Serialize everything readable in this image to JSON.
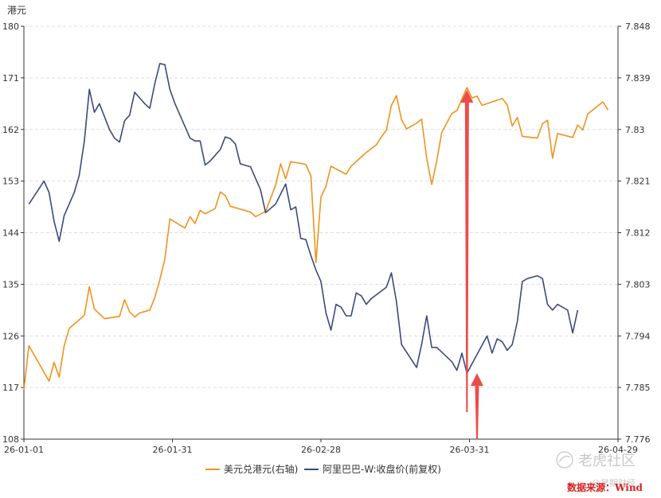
{
  "chart_data": {
    "type": "line",
    "ylabel_left": "港元",
    "x_ticks": [
      "26-01-01",
      "26-01-31",
      "26-02-28",
      "26-03-31",
      "26-04-29"
    ],
    "y_left_ticks": [
      "108",
      "117",
      "126",
      "135",
      "144",
      "153",
      "162",
      "171",
      "180"
    ],
    "y_right_ticks": [
      "7.776",
      "7.785",
      "7.794",
      "7.803",
      "7.812",
      "7.821",
      "7.83",
      "7.839",
      "7.848"
    ],
    "ylim_left": [
      108,
      180
    ],
    "ylim_right": [
      7.776,
      7.848
    ],
    "xlim_days": [
      0,
      118
    ],
    "grid": true,
    "legend_position": "bottom",
    "series": [
      {
        "name": "美元兑港元(右轴)",
        "axis": "right",
        "color": "#f0931e",
        "points": [
          [
            0,
            7.7846
          ],
          [
            1,
            7.7923
          ],
          [
            5,
            7.7861
          ],
          [
            6,
            7.7894
          ],
          [
            7,
            7.7868
          ],
          [
            8,
            7.7923
          ],
          [
            9,
            7.7953
          ],
          [
            12,
            7.7976
          ],
          [
            13,
            7.8026
          ],
          [
            14,
            7.7987
          ],
          [
            16,
            7.797
          ],
          [
            19,
            7.7974
          ],
          [
            20,
            7.8003
          ],
          [
            21,
            7.7982
          ],
          [
            22,
            7.7973
          ],
          [
            23,
            7.798
          ],
          [
            25,
            7.7985
          ],
          [
            26,
            7.8007
          ],
          [
            27,
            7.8038
          ],
          [
            28,
            7.8074
          ],
          [
            29,
            7.8144
          ],
          [
            32,
            7.8128
          ],
          [
            33,
            7.8148
          ],
          [
            34,
            7.8136
          ],
          [
            35,
            7.8159
          ],
          [
            36,
            7.8153
          ],
          [
            38,
            7.8162
          ],
          [
            39,
            7.8191
          ],
          [
            40,
            7.8185
          ],
          [
            41,
            7.8166
          ],
          [
            45,
            7.8156
          ],
          [
            46,
            7.8148
          ],
          [
            48,
            7.8157
          ],
          [
            50,
            7.8203
          ],
          [
            51,
            7.824
          ],
          [
            52,
            7.8214
          ],
          [
            53,
            7.8244
          ],
          [
            56,
            7.8239
          ],
          [
            57,
            7.8219
          ],
          [
            58,
            7.8068
          ],
          [
            59,
            7.8182
          ],
          [
            60,
            7.8201
          ],
          [
            61,
            7.8236
          ],
          [
            64,
            7.8222
          ],
          [
            65,
            7.8236
          ],
          [
            67,
            7.8252
          ],
          [
            68,
            7.826
          ],
          [
            70,
            7.8273
          ],
          [
            71,
            7.8287
          ],
          [
            72,
            7.8299
          ],
          [
            73,
            7.8342
          ],
          [
            74,
            7.8359
          ],
          [
            75,
            7.8317
          ],
          [
            76,
            7.8301
          ],
          [
            78,
            7.8311
          ],
          [
            79,
            7.8318
          ],
          [
            80,
            7.825
          ],
          [
            81,
            7.8204
          ],
          [
            82,
            7.8245
          ],
          [
            83,
            7.8295
          ],
          [
            85,
            7.8328
          ],
          [
            86,
            7.8333
          ],
          [
            88,
            7.8373
          ],
          [
            89,
            7.8355
          ],
          [
            90,
            7.8358
          ],
          [
            91,
            7.8342
          ],
          [
            95,
            7.8354
          ],
          [
            96,
            7.8343
          ],
          [
            97,
            7.8306
          ],
          [
            98,
            7.8321
          ],
          [
            99,
            7.8288
          ],
          [
            102,
            7.8285
          ],
          [
            103,
            7.831
          ],
          [
            104,
            7.8316
          ],
          [
            105,
            7.825
          ],
          [
            106,
            7.8293
          ],
          [
            109,
            7.8286
          ],
          [
            110,
            7.8308
          ],
          [
            111,
            7.8299
          ],
          [
            112,
            7.8327
          ],
          [
            115,
            7.8348
          ],
          [
            116,
            7.8334
          ]
        ]
      },
      {
        "name": "阿里巴巴-W:收盘价(前复权)",
        "axis": "left",
        "color": "#3c4a7d",
        "points": [
          [
            1,
            149.0
          ],
          [
            4,
            153.0
          ],
          [
            5,
            151.0
          ],
          [
            6,
            146.0
          ],
          [
            7,
            142.5
          ],
          [
            8,
            147.0
          ],
          [
            10,
            151.0
          ],
          [
            11,
            154.0
          ],
          [
            12,
            160.0
          ],
          [
            13,
            169.0
          ],
          [
            14,
            165.0
          ],
          [
            15,
            166.5
          ],
          [
            17,
            162.0
          ],
          [
            18,
            160.5
          ],
          [
            19,
            159.8
          ],
          [
            20,
            163.5
          ],
          [
            21,
            164.5
          ],
          [
            22,
            168.5
          ],
          [
            24,
            166.5
          ],
          [
            25,
            165.7
          ],
          [
            26,
            170.0
          ],
          [
            27,
            173.5
          ],
          [
            28,
            173.3
          ],
          [
            29,
            169.0
          ],
          [
            30,
            166.5
          ],
          [
            32,
            162.5
          ],
          [
            33,
            160.5
          ],
          [
            34,
            160.0
          ],
          [
            35,
            160.0
          ],
          [
            36,
            155.8
          ],
          [
            37,
            156.5
          ],
          [
            38,
            157.5
          ],
          [
            39,
            158.5
          ],
          [
            40,
            160.7
          ],
          [
            41,
            160.4
          ],
          [
            42,
            159.5
          ],
          [
            43,
            156.0
          ],
          [
            45,
            155.5
          ],
          [
            47,
            151.5
          ],
          [
            48,
            147.5
          ],
          [
            50,
            149.0
          ],
          [
            52,
            152.5
          ],
          [
            53,
            148.0
          ],
          [
            54,
            148.5
          ],
          [
            55,
            143.0
          ],
          [
            56,
            142.8
          ],
          [
            57,
            140.0
          ],
          [
            58,
            137.5
          ],
          [
            59,
            135.5
          ],
          [
            60,
            130.0
          ],
          [
            61,
            127.0
          ],
          [
            62,
            131.5
          ],
          [
            63,
            131.0
          ],
          [
            64,
            129.5
          ],
          [
            65,
            129.5
          ],
          [
            66,
            133.5
          ],
          [
            67,
            133.0
          ],
          [
            68,
            131.5
          ],
          [
            69,
            132.5
          ],
          [
            72,
            134.5
          ],
          [
            73,
            137.0
          ],
          [
            74,
            132.0
          ],
          [
            75,
            124.5
          ],
          [
            78,
            120.5
          ],
          [
            79,
            124.5
          ],
          [
            80,
            129.5
          ],
          [
            81,
            124.0
          ],
          [
            82,
            124.0
          ],
          [
            85,
            121.5
          ],
          [
            86,
            120.0
          ],
          [
            87,
            123.0
          ],
          [
            88,
            119.5
          ],
          [
            92,
            126.0
          ],
          [
            93,
            123.0
          ],
          [
            94,
            125.5
          ],
          [
            95,
            125.0
          ],
          [
            96,
            123.5
          ],
          [
            97,
            124.5
          ],
          [
            98,
            128.5
          ],
          [
            99,
            135.5
          ],
          [
            100,
            136.0
          ],
          [
            102,
            136.5
          ],
          [
            103,
            136.0
          ],
          [
            104,
            131.5
          ],
          [
            105,
            130.5
          ],
          [
            106,
            131.5
          ],
          [
            108,
            130.5
          ],
          [
            109,
            126.5
          ],
          [
            110,
            130.5
          ]
        ]
      }
    ],
    "annotations": [
      {
        "type": "arrow",
        "color": "#ee4b4b",
        "from_day": 88,
        "from_value_right": 7.7807,
        "to_day": 88,
        "to_value_right": 7.8369
      },
      {
        "type": "arrow",
        "color": "#ee4b4b",
        "from_day": 90,
        "from_value_left": 108.0,
        "to_day": 90,
        "to_value_left": 119.5
      }
    ]
  },
  "source_label": "数据来源：Wind",
  "watermark": {
    "main": "老虎社区",
    "sub": "@是期财经",
    "icon": "tiger-logo-icon"
  }
}
